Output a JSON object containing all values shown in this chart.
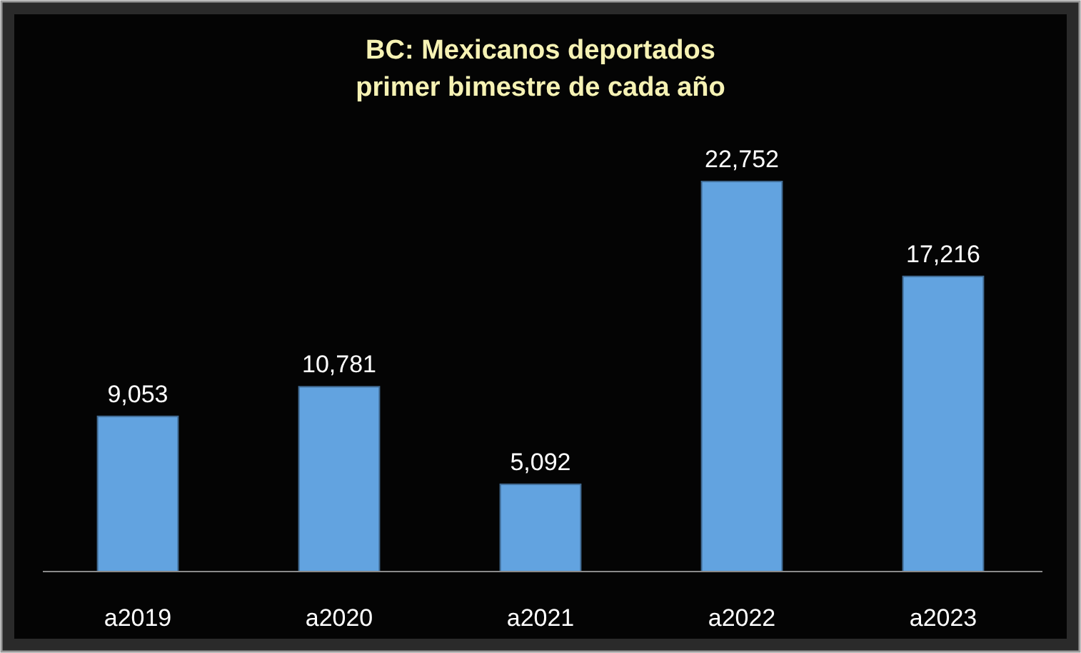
{
  "chart_data": {
    "type": "bar",
    "title": "BC: Mexicanos deportados",
    "subtitle": "primer bimestre de cada año",
    "categories": [
      "a2019",
      "a2020",
      "a2021",
      "a2022",
      "a2023"
    ],
    "values": [
      9053,
      10781,
      5092,
      22752,
      17216
    ],
    "color": "#62a3e0",
    "value_labels": [
      "9,053",
      "10,781",
      "5,092",
      "22,752",
      "17,216"
    ]
  }
}
